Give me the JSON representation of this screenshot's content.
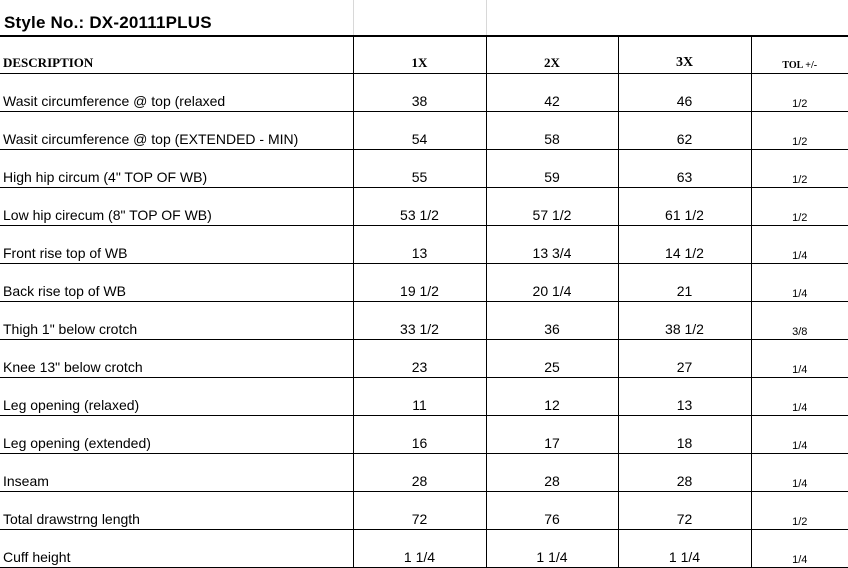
{
  "title": "Style No.: DX-20111PLUS",
  "headers": [
    "DESCRIPTION",
    "1X",
    "2X",
    "3X",
    "TOL +/-"
  ],
  "rows": [
    {
      "desc": "Wasit circumference @ top  (relaxed",
      "s1": "38",
      "s2": "42",
      "s3": "46",
      "tol": "1/2"
    },
    {
      "desc": "Wasit circumference @ top  (EXTENDED - MIN)",
      "s1": "54",
      "s2": "58",
      "s3": "62",
      "tol": "1/2"
    },
    {
      "desc": "High hip circum (4\" TOP OF WB)",
      "s1": "55",
      "s2": "59",
      "s3": "63",
      "tol": "1/2"
    },
    {
      "desc": "Low hip cirecum (8\" TOP OF WB)",
      "s1": "53 1/2",
      "s2": "57 1/2",
      "s3": "61 1/2",
      "tol": "1/2"
    },
    {
      "desc": "Front rise top of WB",
      "s1": "13",
      "s2": "13 3/4",
      "s3": "14 1/2",
      "tol": "1/4"
    },
    {
      "desc": "Back rise top of WB",
      "s1": "19 1/2",
      "s2": "20 1/4",
      "s3": "21",
      "tol": "1/4"
    },
    {
      "desc": "Thigh 1\" below crotch",
      "s1": "33 1/2",
      "s2": "36",
      "s3": "38 1/2",
      "tol": "3/8"
    },
    {
      "desc": "Knee 13\" below crotch",
      "s1": "23",
      "s2": "25",
      "s3": "27",
      "tol": "1/4"
    },
    {
      "desc": "Leg opening  (relaxed)",
      "s1": "11",
      "s2": "12",
      "s3": "13",
      "tol": "1/4"
    },
    {
      "desc": "Leg opening (extended)",
      "s1": "16",
      "s2": "17",
      "s3": "18",
      "tol": "1/4"
    },
    {
      "desc": "Inseam",
      "s1": "28",
      "s2": "28",
      "s3": "28",
      "tol": "1/4"
    },
    {
      "desc": "Total drawstrng length",
      "s1": "72",
      "s2": "76",
      "s3": "72",
      "tol": "1/2"
    },
    {
      "desc": "Cuff height",
      "s1": "1 1/4",
      "s2": "1 1/4",
      "s3": "1 1/4",
      "tol": "1/4"
    }
  ]
}
